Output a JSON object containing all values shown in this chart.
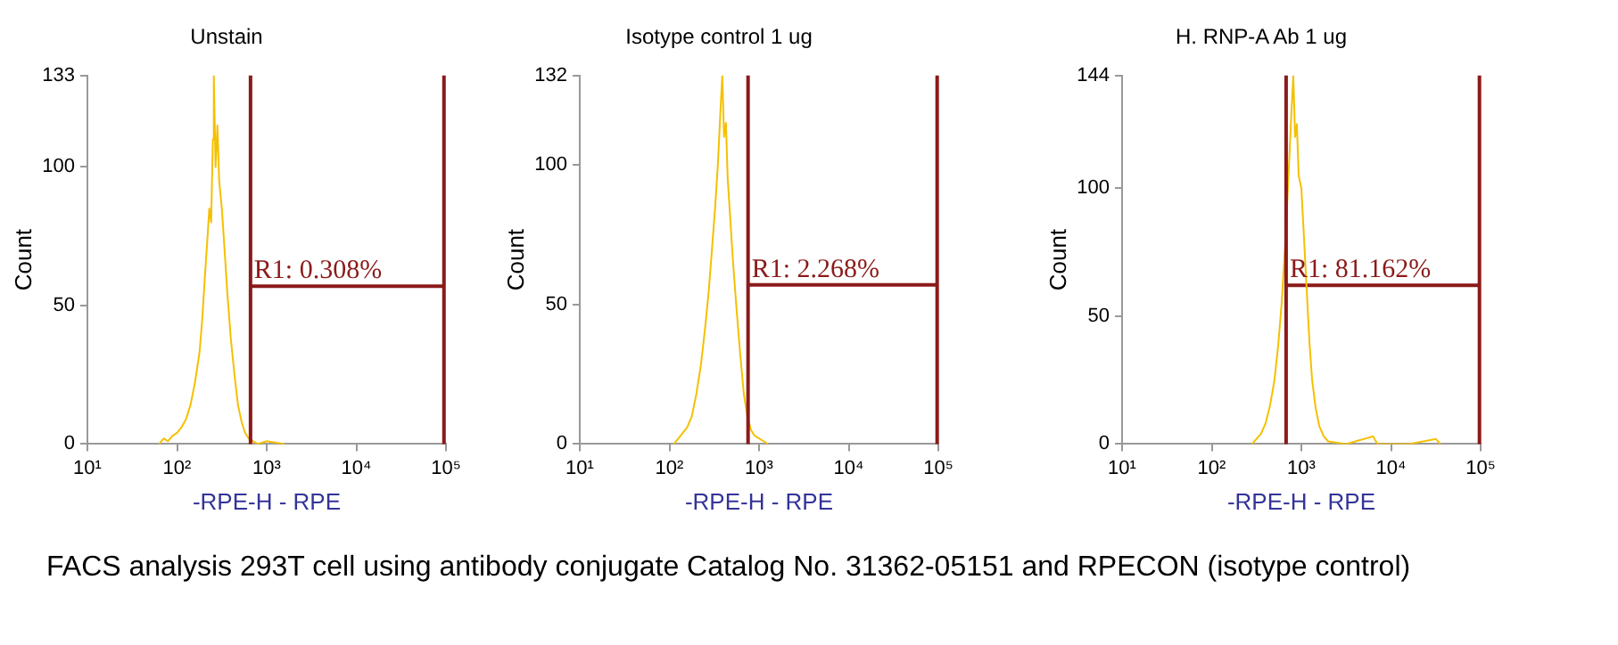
{
  "chart_data": [
    {
      "type": "line",
      "title": "Unstain",
      "xlabel": "-RPE-H - RPE",
      "ylabel": "Count",
      "log": "x",
      "grid": false,
      "legend": false,
      "marker": "none",
      "xlim": [
        10,
        100000
      ],
      "xticks": [
        {
          "value": 10,
          "label": "10¹"
        },
        {
          "value": 100,
          "label": "10²"
        },
        {
          "value": 1000,
          "label": "10³"
        },
        {
          "value": 10000,
          "label": "10⁴"
        },
        {
          "value": 100000,
          "label": "10⁵"
        }
      ],
      "ylim": [
        0,
        133
      ],
      "yticks": [
        0,
        50,
        100,
        133
      ],
      "series": [
        {
          "color": "#f5c000",
          "x": [
            63,
            71,
            79,
            89,
            100,
            112,
            126,
            141,
            158,
            178,
            191,
            204,
            219,
            229,
            240,
            251,
            257,
            269,
            282,
            295,
            316,
            339,
            363,
            398,
            437,
            479,
            525,
            575,
            631,
            708,
            794,
            1000,
            1585
          ],
          "values": [
            0,
            2,
            1,
            3,
            4,
            6,
            9,
            14,
            22,
            33,
            45,
            60,
            75,
            85,
            80,
            110,
            133,
            100,
            115,
            95,
            85,
            70,
            55,
            38,
            25,
            14,
            8,
            4,
            2,
            1,
            0,
            1,
            0
          ]
        },
        {
          "color": "#8b1a1a",
          "x": [
            660,
            95000
          ],
          "values": [
            57,
            57
          ]
        }
      ],
      "ref_lines": [
        {
          "axis": "x",
          "value": 660,
          "color": "#8b1a1a"
        },
        {
          "axis": "x",
          "value": 95000,
          "color": "#8b1a1a"
        }
      ],
      "annotations": [
        {
          "text": "R1: 0.308%",
          "x": 660,
          "y": 57
        },
        "FACS analysis 293T cell using antibody conjugate Catalog No. 31362-05151 and RPECON (isotype control)"
      ]
    },
    {
      "type": "line",
      "title": "Isotype control 1 ug",
      "xlabel": "-RPE-H - RPE",
      "ylabel": "Count",
      "log": "x",
      "grid": false,
      "legend": false,
      "marker": "none",
      "xlim": [
        10,
        100000
      ],
      "xticks": [
        {
          "value": 10,
          "label": "10¹"
        },
        {
          "value": 100,
          "label": "10²"
        },
        {
          "value": 1000,
          "label": "10³"
        },
        {
          "value": 10000,
          "label": "10⁴"
        },
        {
          "value": 100000,
          "label": "10⁵"
        }
      ],
      "ylim": [
        0,
        132
      ],
      "yticks": [
        0,
        50,
        100,
        132
      ],
      "series": [
        {
          "color": "#f5c000",
          "x": [
            112,
            126,
            141,
            158,
            178,
            200,
            224,
            251,
            275,
            302,
            324,
            347,
            372,
            389,
            407,
            427,
            447,
            479,
            513,
            562,
            617,
            676,
            741,
            813,
            891,
            1000,
            1122,
            1259
          ],
          "values": [
            0,
            2,
            4,
            6,
            10,
            18,
            28,
            42,
            55,
            72,
            85,
            100,
            120,
            132,
            110,
            115,
            95,
            80,
            65,
            48,
            32,
            18,
            10,
            5,
            3,
            2,
            1,
            0
          ]
        },
        {
          "color": "#8b1a1a",
          "x": [
            754,
            97000
          ],
          "values": [
            57,
            57
          ]
        }
      ],
      "ref_lines": [
        {
          "axis": "x",
          "value": 754,
          "color": "#8b1a1a"
        },
        {
          "axis": "x",
          "value": 97000,
          "color": "#8b1a1a"
        }
      ],
      "annotations": [
        {
          "text": "R1: 2.268%",
          "x": 754,
          "y": 57
        }
      ]
    },
    {
      "type": "line",
      "title": "H. RNP-A Ab 1 ug",
      "xlabel": "-RPE-H - RPE",
      "ylabel": "Count",
      "log": "x",
      "grid": false,
      "legend": false,
      "marker": "none",
      "xlim": [
        10,
        100000
      ],
      "xticks": [
        {
          "value": 10,
          "label": "10¹"
        },
        {
          "value": 100,
          "label": "10²"
        },
        {
          "value": 1000,
          "label": "10³"
        },
        {
          "value": 10000,
          "label": "10⁴"
        },
        {
          "value": 100000,
          "label": "10⁵"
        }
      ],
      "ylim": [
        0,
        144
      ],
      "yticks": [
        0,
        50,
        100,
        144
      ],
      "series": [
        {
          "color": "#f5c000",
          "x": [
            282,
            316,
            355,
            398,
            447,
            501,
            550,
            603,
            661,
            708,
            741,
            776,
            813,
            851,
            891,
            933,
            1000,
            1072,
            1148,
            1230,
            1318,
            1445,
            1585,
            1778,
            1995,
            3162,
            6310,
            7079,
            15849,
            31623,
            35481
          ],
          "values": [
            0,
            2,
            4,
            8,
            15,
            25,
            38,
            55,
            78,
            100,
            115,
            130,
            144,
            120,
            125,
            105,
            100,
            80,
            60,
            40,
            25,
            14,
            7,
            3,
            1,
            0,
            3,
            0,
            0,
            2,
            0
          ]
        },
        {
          "color": "#8b1a1a",
          "x": [
            676,
            97000
          ],
          "values": [
            62,
            62
          ]
        }
      ],
      "ref_lines": [
        {
          "axis": "x",
          "value": 676,
          "color": "#8b1a1a"
        },
        {
          "axis": "x",
          "value": 97000,
          "color": "#8b1a1a"
        }
      ],
      "annotations": [
        {
          "text": "R1: 81.162%",
          "x": 676,
          "y": 62
        }
      ]
    }
  ]
}
